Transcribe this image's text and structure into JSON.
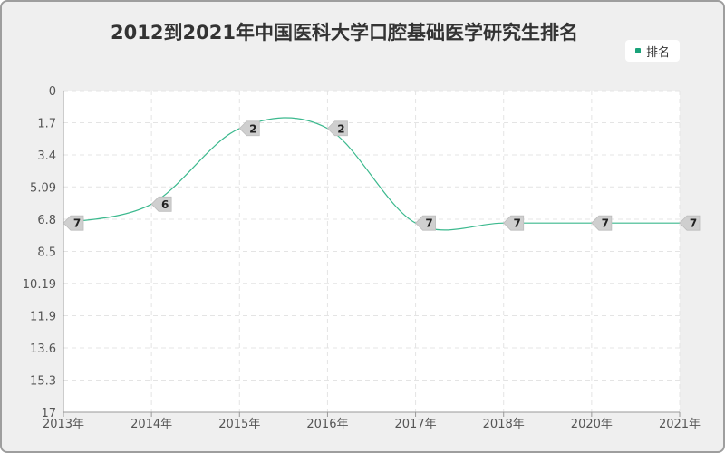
{
  "chart_data": {
    "type": "line",
    "title": "2012到2021年中国医科大学口腔基础医学研究生排名",
    "x": [
      "2013年",
      "2014年",
      "2015年",
      "2016年",
      "2017年",
      "2018年",
      "2020年",
      "2021年"
    ],
    "series": [
      {
        "name": "排名",
        "values": [
          7,
          6,
          2,
          2,
          7,
          7,
          7,
          7
        ],
        "color": "#3cb98e"
      }
    ],
    "yticks": [
      "0",
      "1.7",
      "3.4",
      "5.09",
      "6.8",
      "8.5",
      "10.19",
      "11.9",
      "13.6",
      "15.3",
      "17"
    ],
    "ylim": [
      0,
      17
    ],
    "y_inverted": true,
    "grid": true,
    "legend_position": "top-right"
  }
}
